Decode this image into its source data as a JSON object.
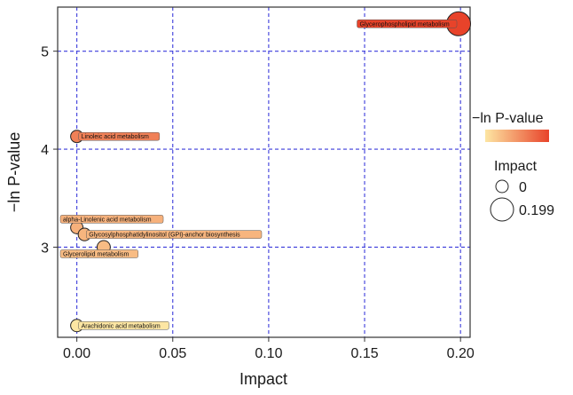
{
  "chart_data": {
    "type": "scatter",
    "xlabel": "Impact",
    "ylabel": "−ln P-value",
    "xlim": [
      -0.01,
      0.205
    ],
    "ylim": [
      2.08,
      5.45
    ],
    "x_ticks": [
      0.0,
      0.05,
      0.1,
      0.15,
      0.2
    ],
    "x_tick_labels": [
      "0.00",
      "0.05",
      "0.10",
      "0.15",
      "0.20"
    ],
    "y_ticks": [
      3,
      4,
      5
    ],
    "y_tick_labels": [
      "3",
      "4",
      "5"
    ],
    "grid": true,
    "grid_color": "#3b3bdb",
    "points": [
      {
        "label": "Glycerophospholipid metabolism",
        "x": 0.199,
        "y": 5.28
      },
      {
        "label": "Linoleic acid metabolism",
        "x": 0.0,
        "y": 4.13
      },
      {
        "label": "alpha-Linolenic acid metabolism",
        "x": 0.0,
        "y": 3.2
      },
      {
        "label": "Glycosylphosphatidylinositol (GPI)-anchor biosynthesis",
        "x": 0.004,
        "y": 3.13
      },
      {
        "label": "Glycerolipid metabolism",
        "x": 0.014,
        "y": 3.0
      },
      {
        "label": "Arachidonic acid metabolism",
        "x": 0.0,
        "y": 2.2
      }
    ],
    "legend": {
      "color_title": "−ln P-value",
      "color_low": "#fde6a3",
      "color_high": "#e8432a",
      "size_title": "Impact",
      "size_entries": [
        "0",
        "0.199"
      ],
      "position": "right"
    }
  }
}
